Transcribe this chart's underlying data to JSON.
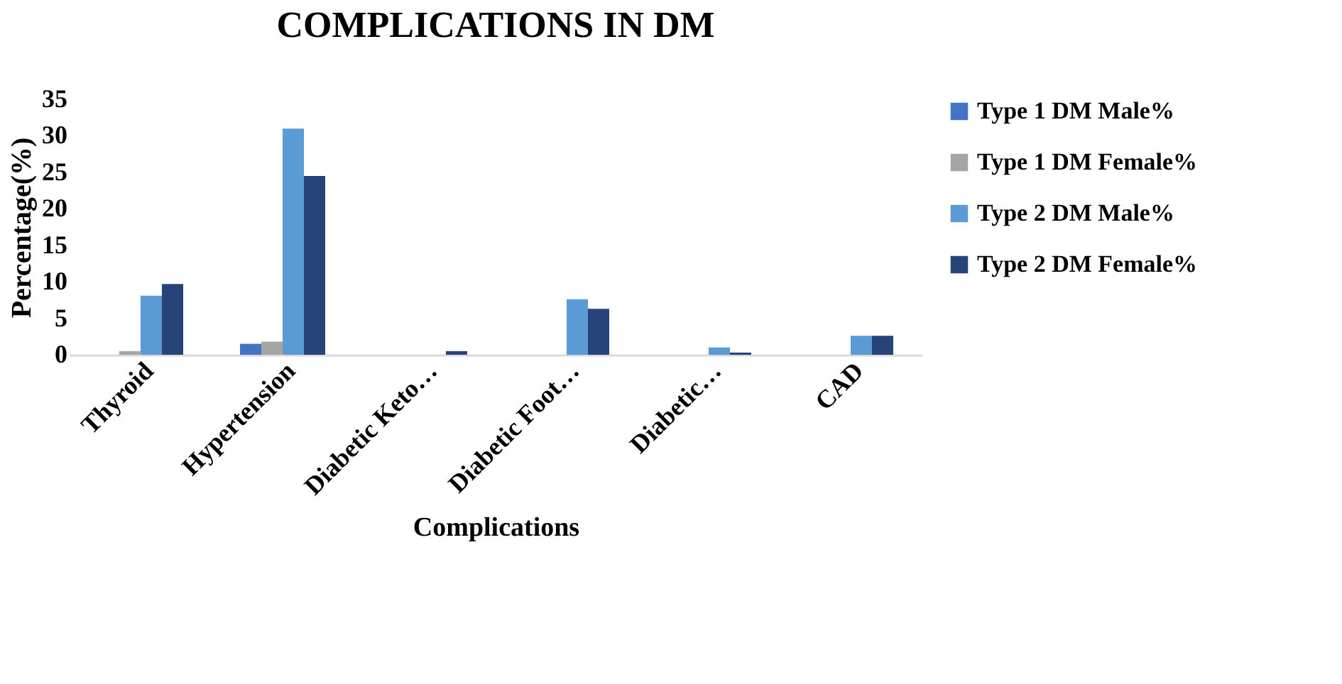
{
  "chart_data": {
    "type": "bar",
    "title": "COMPLICATIONS IN DM",
    "xlabel": "Complications",
    "ylabel": "Percentage(%)",
    "categories": [
      "Thyroid",
      "Hypertension",
      "Diabetic Keto…",
      "Diabetic Foot…",
      "Diabetic…",
      "CAD"
    ],
    "series": [
      {
        "name": "Type 1 DM Male%",
        "color": "#4472c4",
        "values": [
          0,
          1.5,
          0,
          0,
          0,
          0
        ]
      },
      {
        "name": "Type 1 DM Female%",
        "color": "#a5a5a5",
        "values": [
          0.5,
          1.8,
          0,
          0,
          0,
          0
        ]
      },
      {
        "name": "Type 2 DM Male%",
        "color": "#5b9bd5",
        "values": [
          8.1,
          31,
          0,
          7.6,
          1,
          2.6
        ]
      },
      {
        "name": "Type 2 DM Female%",
        "color": "#264478",
        "values": [
          9.7,
          24.5,
          0.5,
          6.3,
          0.3,
          2.6
        ]
      }
    ],
    "ylim": [
      0,
      35
    ],
    "yticks": [
      0,
      5,
      10,
      15,
      20,
      25,
      30,
      35
    ],
    "grid": false,
    "legend": "right"
  }
}
